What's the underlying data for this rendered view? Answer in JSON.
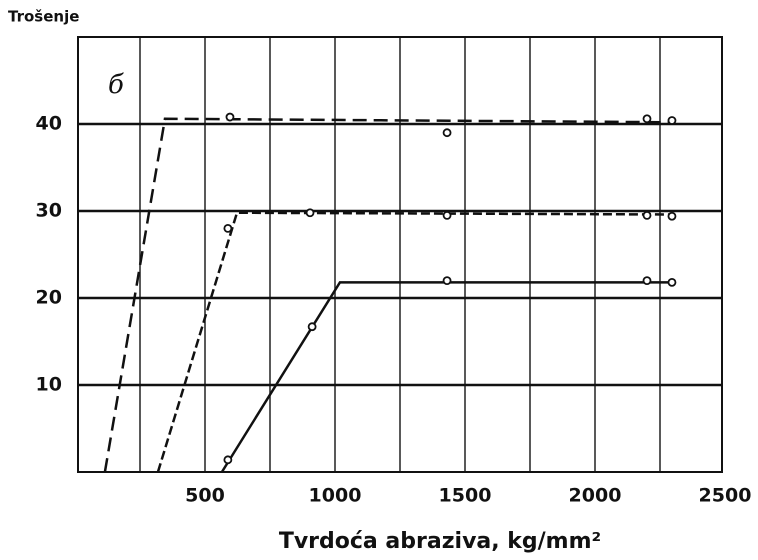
{
  "chart_data": {
    "type": "line",
    "title": "Trošenje",
    "annotation": "б",
    "x_label": "Tvrdoća abraziva, kg/mm²",
    "xlim": [
      0,
      2500
    ],
    "ylim": [
      0,
      50
    ],
    "xticks": [
      500,
      1000,
      1500,
      2000,
      2500
    ],
    "xminorticks": [
      250,
      750,
      1250,
      1750,
      2250
    ],
    "yticks": [
      10,
      20,
      30,
      40
    ],
    "grid": true,
    "color": "#111111",
    "series": [
      {
        "x": [
          115,
          346,
          2290
        ],
        "values": [
          0,
          40.6,
          40.2
        ],
        "dash": "14 7"
      },
      {
        "x": [
          319,
          623,
          2290
        ],
        "values": [
          0,
          29.8,
          29.6
        ],
        "dash": "9 4"
      },
      {
        "x": [
          565,
          1019,
          2290
        ],
        "values": [
          0,
          21.8,
          21.8
        ],
        "dash": "none"
      },
      {
        "type": "scatter",
        "x": [
          596,
          1431,
          2200,
          2296
        ],
        "values": [
          40.8,
          39,
          40.6,
          40.4
        ]
      },
      {
        "type": "scatter",
        "x": [
          588,
          904,
          1431,
          2200,
          2296
        ],
        "values": [
          28,
          29.8,
          29.5,
          29.5,
          29.4
        ]
      },
      {
        "type": "scatter",
        "x": [
          588,
          912,
          1431,
          2200,
          2296
        ],
        "values": [
          1.4,
          16.7,
          22,
          22,
          21.8
        ]
      }
    ]
  }
}
